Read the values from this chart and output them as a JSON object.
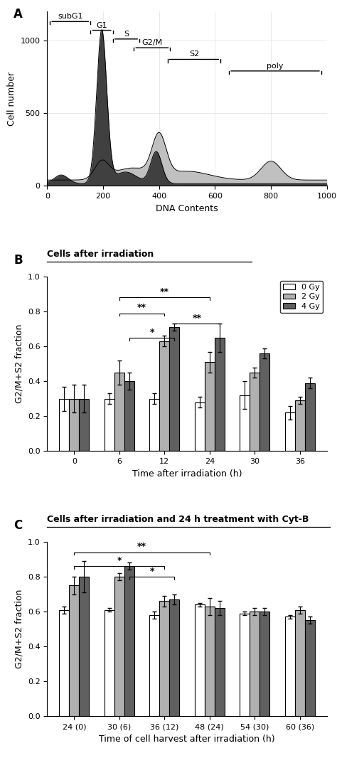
{
  "panel_A": {
    "xlabel": "DNA Contents",
    "ylabel": "Cell number",
    "xlim": [
      0,
      1000
    ],
    "ylim": [
      0,
      1200
    ],
    "yticks": [
      0,
      500,
      1000
    ],
    "xticks": [
      0,
      200,
      400,
      600,
      800,
      1000
    ],
    "regions": [
      {
        "label": "subG1",
        "x_start": 10,
        "x_end": 155
      },
      {
        "label": "G1",
        "x_start": 155,
        "x_end": 235
      },
      {
        "label": "S",
        "x_start": 235,
        "x_end": 330
      },
      {
        "label": "G2/M",
        "x_start": 310,
        "x_end": 440
      },
      {
        "label": "S2",
        "x_start": 430,
        "x_end": 620
      },
      {
        "label": "poly",
        "x_start": 650,
        "x_end": 980
      }
    ],
    "region_y": [
      1130,
      1070,
      1010,
      950,
      870,
      790
    ]
  },
  "panel_B": {
    "title": "Cells after irradiation",
    "xlabel": "Time after irradiation (h)",
    "ylabel": "G2/M+S2 fraction",
    "ylim": [
      0,
      1.0
    ],
    "yticks": [
      0,
      0.2,
      0.4,
      0.6,
      0.8,
      1.0
    ],
    "categories": [
      "0",
      "6",
      "12",
      "24",
      "30",
      "36"
    ],
    "bar_colors": [
      "#ffffff",
      "#b0b0b0",
      "#606060"
    ],
    "legend_labels": [
      "0 Gy",
      "2 Gy",
      "4 Gy"
    ],
    "values_0gy": [
      0.3,
      0.3,
      0.3,
      0.28,
      0.32,
      0.22
    ],
    "values_2gy": [
      0.3,
      0.45,
      0.63,
      0.51,
      0.45,
      0.29
    ],
    "values_4gy": [
      0.3,
      0.4,
      0.71,
      0.65,
      0.56,
      0.39
    ],
    "errors_0gy": [
      0.07,
      0.03,
      0.03,
      0.03,
      0.08,
      0.04
    ],
    "errors_2gy": [
      0.08,
      0.07,
      0.03,
      0.06,
      0.03,
      0.02
    ],
    "errors_4gy": [
      0.08,
      0.05,
      0.02,
      0.08,
      0.03,
      0.03
    ]
  },
  "panel_C": {
    "title": "Cells after irradiation and 24 h treatment with Cyt-B",
    "xlabel": "Time of cell harvest after irradiation (h)",
    "ylabel": "G2/M+S2 fraction",
    "ylim": [
      0,
      1.0
    ],
    "yticks": [
      0,
      0.2,
      0.4,
      0.6,
      0.8,
      1.0
    ],
    "categories": [
      "24 (0)",
      "30 (6)",
      "36 (12)",
      "48 (24)",
      "54 (30)",
      "60 (36)"
    ],
    "bar_colors": [
      "#ffffff",
      "#b0b0b0",
      "#606060"
    ],
    "legend_labels": [
      "0 Gy",
      "2 Gy",
      "4 Gy"
    ],
    "values_0gy": [
      0.61,
      0.61,
      0.58,
      0.64,
      0.59,
      0.57
    ],
    "values_2gy": [
      0.75,
      0.8,
      0.66,
      0.63,
      0.6,
      0.61
    ],
    "values_4gy": [
      0.8,
      0.86,
      0.67,
      0.62,
      0.6,
      0.55
    ],
    "errors_0gy": [
      0.02,
      0.01,
      0.02,
      0.01,
      0.01,
      0.01
    ],
    "errors_2gy": [
      0.05,
      0.02,
      0.03,
      0.05,
      0.02,
      0.02
    ],
    "errors_4gy": [
      0.09,
      0.02,
      0.03,
      0.04,
      0.02,
      0.02
    ]
  }
}
